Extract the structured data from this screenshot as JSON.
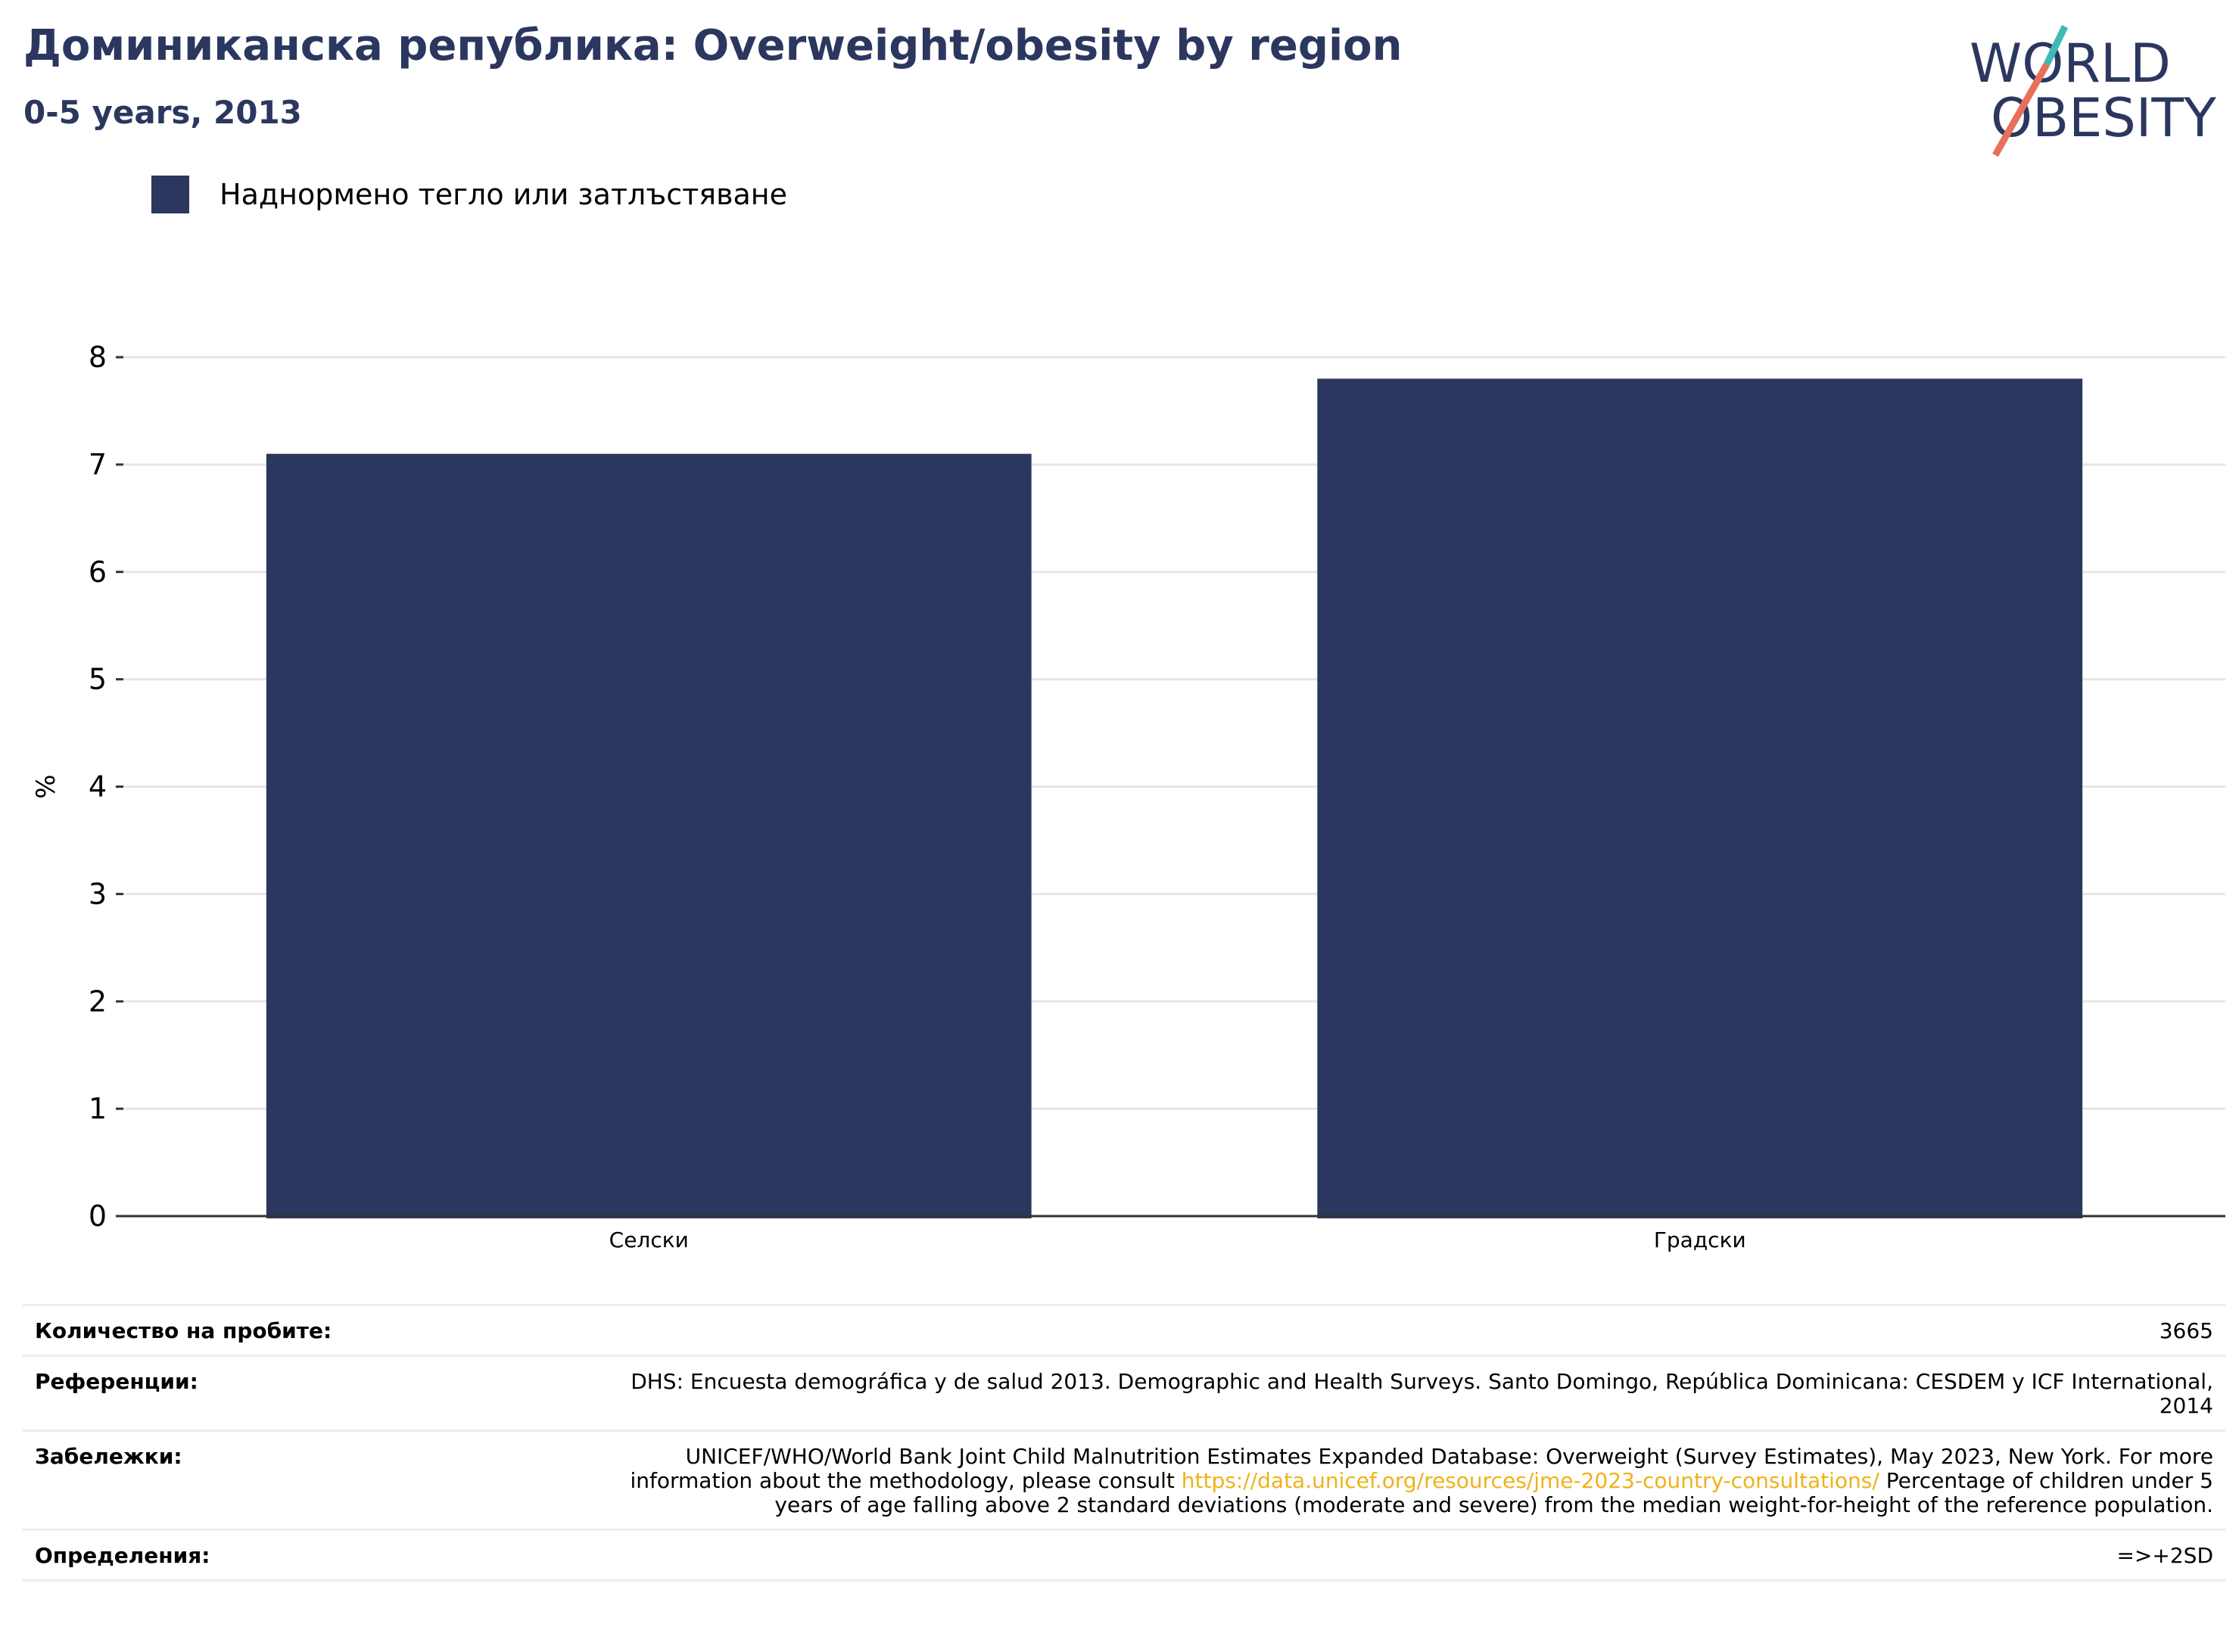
{
  "header": {
    "title": "Доминиканска република: Overweight/obesity by region",
    "subtitle": "0-5 years, 2013",
    "logo_text": [
      "WORLD",
      "OBESITY"
    ]
  },
  "colors": {
    "bar": "#2b375f",
    "title": "#2b375f",
    "link": "#f0b21a",
    "logo_teal": "#3fb9b5",
    "logo_orange": "#e8705a"
  },
  "chart_data": {
    "type": "bar",
    "categories": [
      "Селски",
      "Градски"
    ],
    "series": [
      {
        "name": "Наднормено тегло или затлъстяване",
        "values": [
          7.1,
          7.8
        ]
      }
    ],
    "ylabel": "%",
    "xlabel": "",
    "ylim": [
      0,
      8
    ],
    "yticks": [
      "0",
      "1",
      "2",
      "3",
      "4",
      "5",
      "6",
      "7",
      "8"
    ],
    "grid": true,
    "legend": "top-left"
  },
  "info": {
    "sample_label": "Количество на пробите:",
    "sample_value": "3665",
    "references_label": "Референции:",
    "references_value": "DHS: Encuesta demográfica y de salud 2013. Demographic and Health Surveys. Santo Domingo, República Dominicana: CESDEM y ICF International, 2014",
    "notes_label": "Забележки:",
    "notes_pre": "UNICEF/WHO/World Bank Joint Child Malnutrition Estimates Expanded Database: Overweight (Survey Estimates), May 2023, New York. For more information about the methodology, please consult ",
    "notes_link": "https://data.unicef.org/resources/jme-2023-country-consultations/",
    "notes_post": " Percentage of children under 5 years of age falling above 2 standard deviations (moderate and severe) from the median weight-for-height of the reference population.",
    "definitions_label": "Определения:",
    "definitions_value": "=>+2SD"
  }
}
